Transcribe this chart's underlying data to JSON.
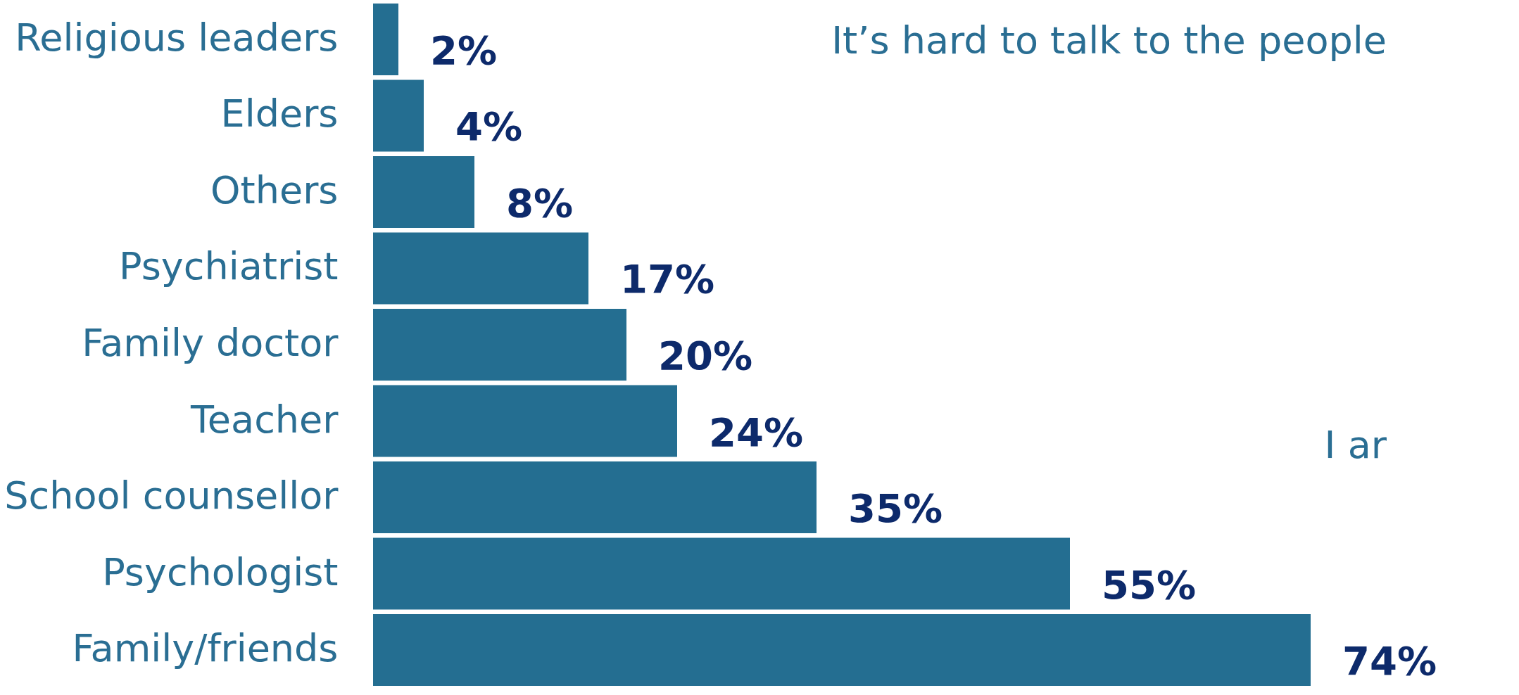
{
  "chart_data": {
    "type": "bar",
    "orientation": "horizontal",
    "value_labels": [
      "2%",
      "4%",
      "8%",
      "17%",
      "20%",
      "24%",
      "35%",
      "55%",
      "74%"
    ],
    "categories": [
      "Religious leaders",
      "Elders",
      "Others",
      "Psychiatrist",
      "Family doctor",
      "Teacher",
      "School counsellor",
      "Psychologist",
      "Family/friends"
    ],
    "values": [
      2,
      4,
      8,
      17,
      20,
      24,
      35,
      55,
      74
    ],
    "color": "#246e91",
    "annotations": [
      "It’s hard to talk to the people",
      "I ar"
    ],
    "grid": false
  }
}
